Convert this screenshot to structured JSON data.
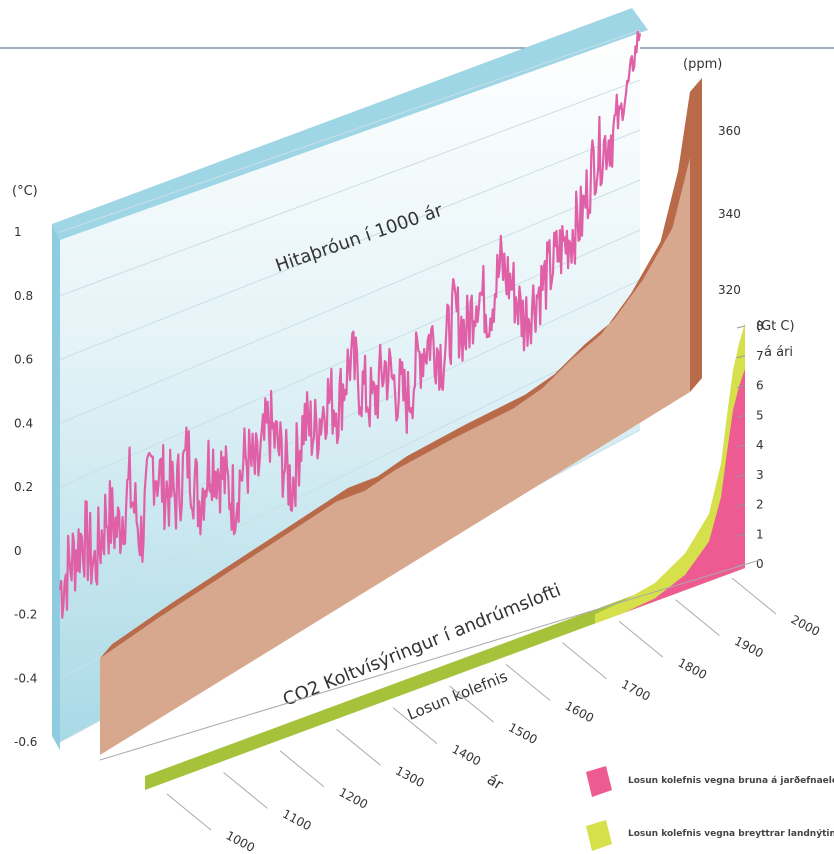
{
  "chart_data": {
    "type": "area",
    "temperature": {
      "label": "Hitaþróun í 1000 ár",
      "unit": "(°C)",
      "ticks": [
        "1",
        "0.8",
        "0.6",
        "0.4",
        "0.2",
        "0",
        "-0.2",
        "-0.4",
        "-0.6"
      ],
      "tick_values": [
        1,
        0.8,
        0.6,
        0.4,
        0.2,
        0,
        -0.2,
        -0.4,
        -0.6
      ],
      "ylim": [
        -0.6,
        1.0
      ],
      "x": [
        1000,
        1020,
        1040,
        1060,
        1080,
        1100,
        1120,
        1140,
        1160,
        1180,
        1200,
        1220,
        1240,
        1260,
        1280,
        1300,
        1320,
        1340,
        1360,
        1380,
        1400,
        1420,
        1440,
        1460,
        1480,
        1500,
        1520,
        1540,
        1560,
        1580,
        1600,
        1620,
        1640,
        1660,
        1680,
        1700,
        1720,
        1740,
        1760,
        1780,
        1800,
        1820,
        1840,
        1860,
        1880,
        1900,
        1920,
        1940,
        1960,
        1980,
        2000
      ],
      "values": [
        -0.12,
        -0.05,
        0.02,
        -0.1,
        0.05,
        -0.02,
        0.1,
        -0.08,
        0.15,
        0.05,
        0.0,
        0.12,
        -0.05,
        0.08,
        0.0,
        -0.1,
        0.02,
        -0.05,
        0.1,
        -0.02,
        -0.15,
        0.05,
        0.0,
        0.1,
        0.05,
        0.2,
        0.08,
        0.0,
        0.12,
        0.02,
        -0.05,
        0.1,
        0.15,
        0.05,
        0.2,
        0.1,
        0.25,
        0.15,
        0.3,
        0.2,
        0.05,
        0.12,
        0.18,
        0.25,
        0.3,
        0.35,
        0.55,
        0.6,
        0.65,
        0.8,
        1.0
      ]
    },
    "co2": {
      "label": "CO2 Koltvísýringur í andrúmslofti",
      "unit": "(ppm)",
      "ticks": [
        "360",
        "340",
        "320"
      ],
      "tick_values": [
        360,
        340,
        320
      ],
      "x": [
        1000,
        1100,
        1200,
        1300,
        1400,
        1450,
        1500,
        1600,
        1700,
        1750,
        1800,
        1850,
        1900,
        1950,
        1980,
        2000
      ],
      "values": [
        279,
        281,
        282,
        283,
        284,
        281,
        282,
        280,
        277,
        278,
        283,
        286,
        296,
        311,
        338,
        370
      ]
    },
    "emissions": {
      "label": "Losun kolefnis",
      "unit": "(Gt C)",
      "unit2": "á ári",
      "ticks": [
        "8",
        "7",
        "6",
        "5",
        "4",
        "3",
        "2",
        "1",
        "0"
      ],
      "tick_values": [
        8,
        7,
        6,
        5,
        4,
        3,
        2,
        1,
        0
      ],
      "x": [
        1750,
        1800,
        1850,
        1900,
        1920,
        1940,
        1960,
        1970,
        1980,
        1990,
        2000
      ],
      "fossil": [
        0,
        0,
        0.1,
        0.5,
        0.9,
        1.3,
        2.6,
        4.0,
        5.3,
        6.0,
        6.5
      ],
      "land_use": [
        0.3,
        0.4,
        0.5,
        0.7,
        0.8,
        0.9,
        1.1,
        1.2,
        1.3,
        1.4,
        1.5
      ]
    },
    "xaxis": {
      "label": "ár",
      "ticks": [
        "1000",
        "1100",
        "1200",
        "1300",
        "1400",
        "1500",
        "1600",
        "1700",
        "1800",
        "1900",
        "2000"
      ],
      "tick_values": [
        1000,
        1100,
        1200,
        1300,
        1400,
        1500,
        1600,
        1700,
        1800,
        1900,
        2000
      ]
    },
    "legend": [
      {
        "name": "Losun kolefnis vegna bruna á jarðefnaeldsneyti",
        "color": "#ee5a92"
      },
      {
        "name": "Losun kolefnis vegna breyttrar landnýtingar",
        "color": "#d6e04a"
      }
    ],
    "colors": {
      "temperature_line": "#e060a8",
      "temperature_panel": "#bde3ee",
      "co2_front": "#d8a88e",
      "co2_top": "#b96a48",
      "fossil": "#ee5a92",
      "land_use": "#d6e04a",
      "land_top": "#a6c23a"
    }
  }
}
